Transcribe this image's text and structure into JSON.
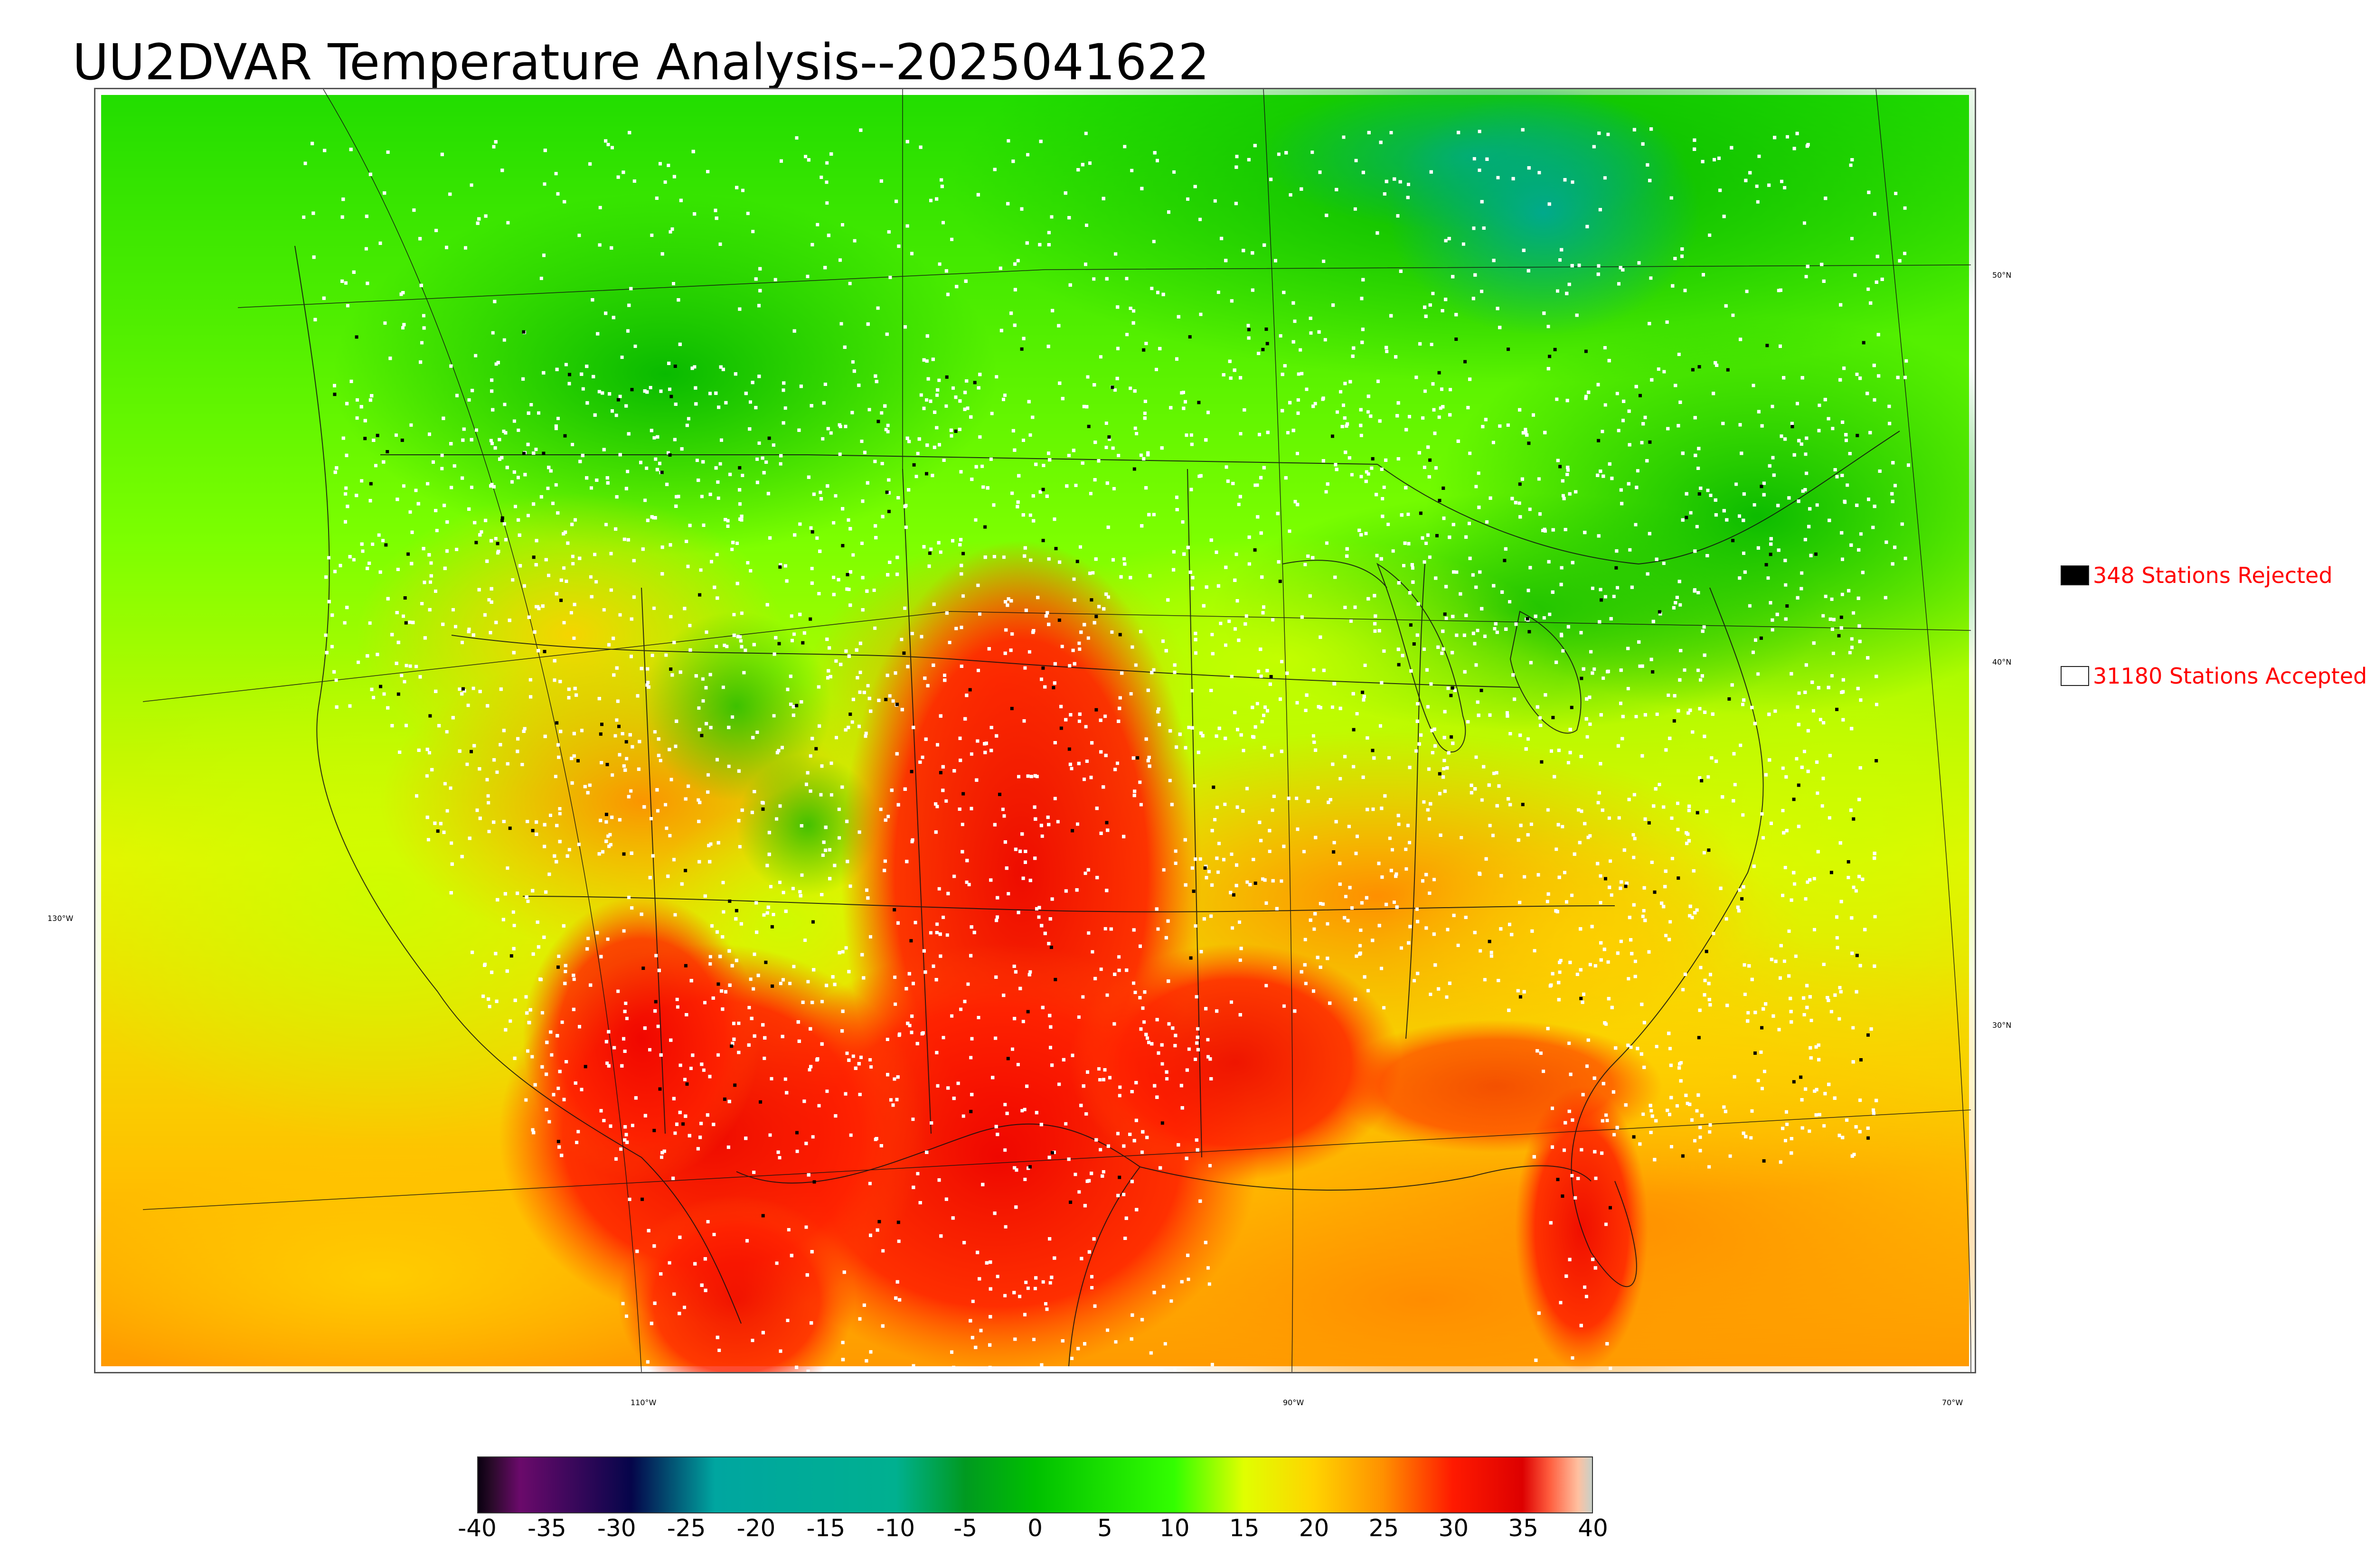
{
  "title": "UU2DVAR Temperature Analysis--2025041622",
  "map": {
    "lat_labels": [
      "50°N",
      "40°N",
      "30°N"
    ],
    "lon_labels": [
      "130°W",
      "110°W",
      "90°W",
      "70°W"
    ]
  },
  "legend": {
    "rejected": {
      "text": "348 Stations Rejected",
      "color": "#000000"
    },
    "accepted": {
      "text": "31180 Stations Accepted",
      "color": "#ffffff"
    },
    "text_color": "#ff0000"
  },
  "colorbar": {
    "min": -40,
    "max": 40,
    "ticks": [
      "-40",
      "-35",
      "-30",
      "-25",
      "-20",
      "-15",
      "-10",
      "-5",
      "0",
      "5",
      "10",
      "15",
      "20",
      "25",
      "30",
      "35",
      "40"
    ],
    "stops": [
      {
        "value": -40,
        "color": "#0a0010"
      },
      {
        "value": -39,
        "color": "#2a0a2a"
      },
      {
        "value": -37,
        "color": "#6b0a6b"
      },
      {
        "value": -29,
        "color": "#05054a"
      },
      {
        "value": -23,
        "color": "#00a6a0"
      },
      {
        "value": -10,
        "color": "#00b090"
      },
      {
        "value": -5,
        "color": "#009a20"
      },
      {
        "value": 0,
        "color": "#00c000"
      },
      {
        "value": 10,
        "color": "#33ff00"
      },
      {
        "value": 15,
        "color": "#e0ff00"
      },
      {
        "value": 20,
        "color": "#ffd400"
      },
      {
        "value": 25,
        "color": "#ff9000"
      },
      {
        "value": 30,
        "color": "#ff1a00"
      },
      {
        "value": 35,
        "color": "#dd0000"
      },
      {
        "value": 37,
        "color": "#ff6040"
      },
      {
        "value": 39,
        "color": "#ffc0a0"
      },
      {
        "value": 40,
        "color": "#c8d0c8"
      }
    ]
  }
}
